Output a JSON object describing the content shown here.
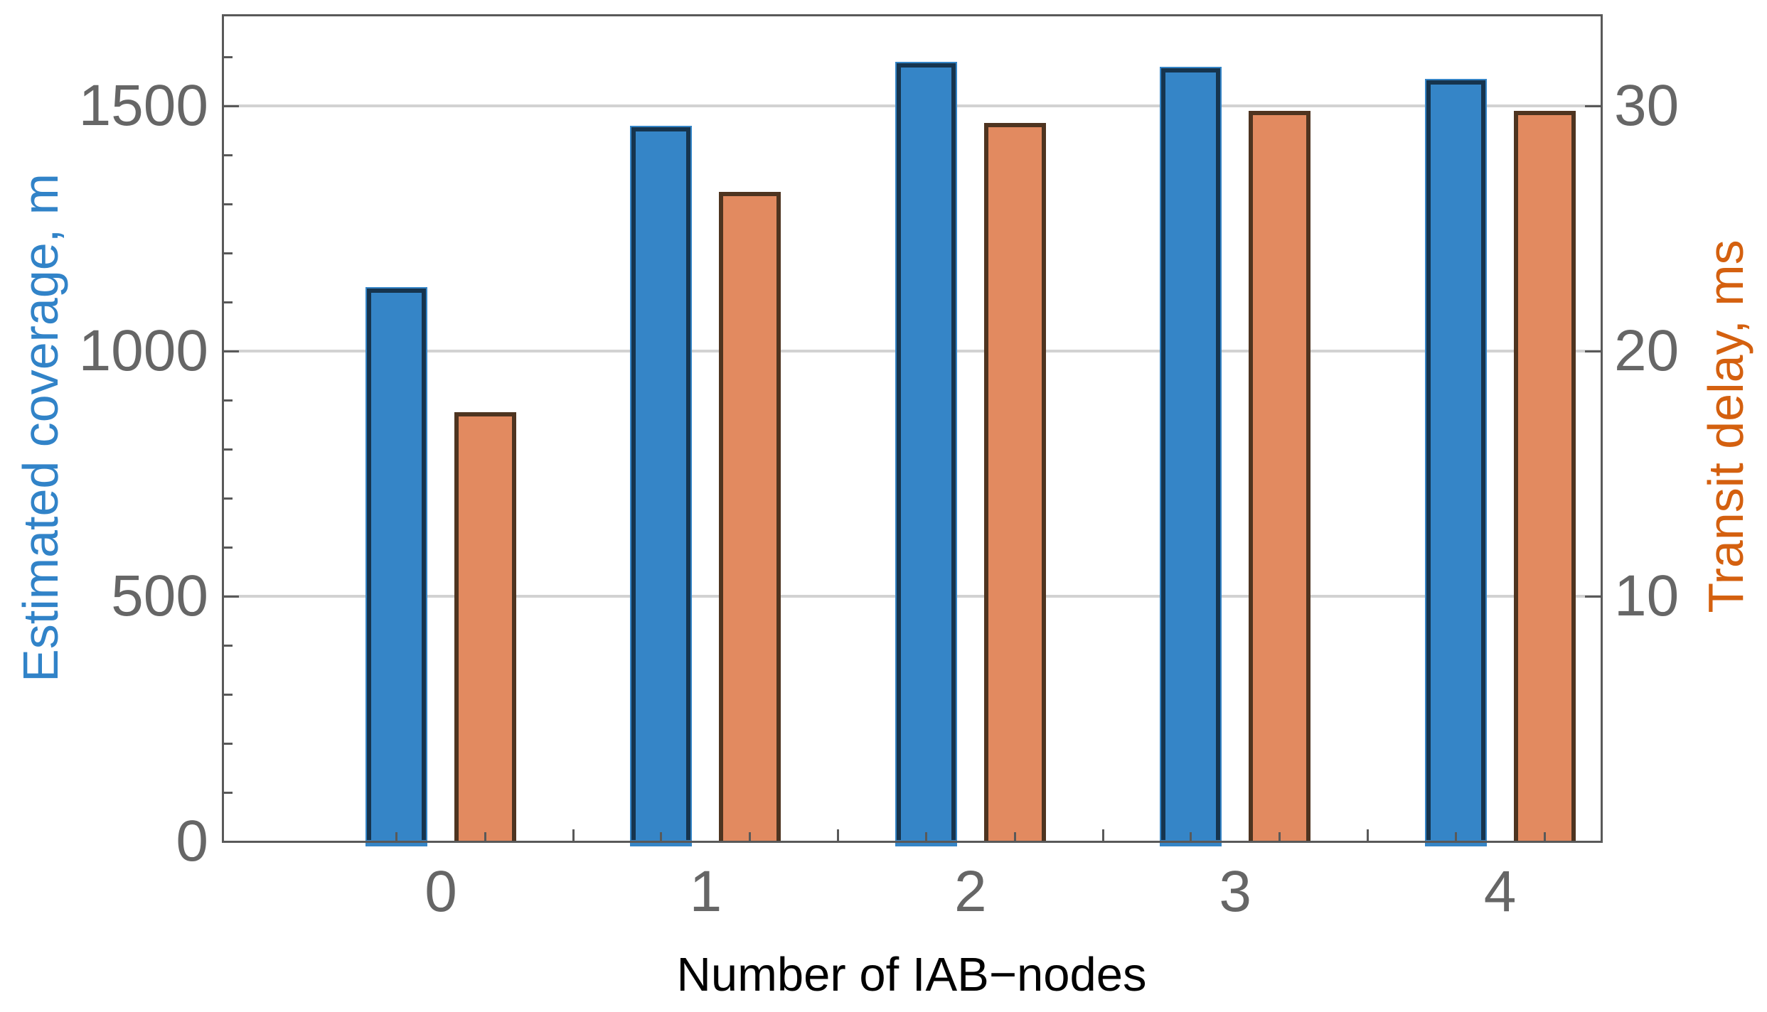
{
  "chart_data": {
    "type": "bar",
    "title": "",
    "categories": [
      "0",
      "1",
      "2",
      "3",
      "4"
    ],
    "xlabel": "Number of IAB−nodes",
    "grid": "horizontal-on",
    "legend": "none",
    "left_axis": {
      "label": "Estimated coverage, m",
      "label_color": "#3183c8",
      "tick_labels": [
        "0",
        "500",
        "1000",
        "1500"
      ],
      "tick_values": [
        0,
        500,
        1000,
        1500
      ],
      "minor_tick_step": 100,
      "ylim": [
        0,
        1685
      ]
    },
    "right_axis": {
      "label": "Transit delay, ms",
      "label_color": "#d4600f",
      "tick_labels": [
        "10",
        "20",
        "30"
      ],
      "tick_values": [
        10,
        20,
        30
      ],
      "ylim": [
        0,
        33.7
      ]
    },
    "series": [
      {
        "name": "Estimated coverage, m",
        "axis": "left",
        "fill_color": "#3585c7",
        "edge_color": "#16344e",
        "values": [
          1130,
          1460,
          1590,
          1580,
          1555
        ]
      },
      {
        "name": "Transit delay, ms",
        "axis": "right",
        "fill_color": "#e28a60",
        "edge_color": "#4e3420",
        "values": [
          17.5,
          26.5,
          29.3,
          29.8,
          29.8
        ]
      }
    ],
    "frame_color": "#595959",
    "gridline_color": "#d2d2d2",
    "tick_label_color": "#666666"
  }
}
